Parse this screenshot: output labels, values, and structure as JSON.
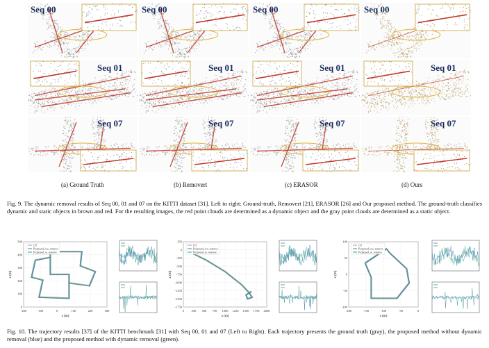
{
  "figure9": {
    "rows": [
      {
        "label": "Seq 00"
      },
      {
        "label": "Seq 01"
      },
      {
        "label": "Seq 07"
      }
    ],
    "columns": [
      {
        "label": "(a) Ground Truth",
        "dynamic": "#c0392b",
        "static": "#9a9a9a"
      },
      {
        "label": "(b) Removert",
        "dynamic": "#c0392b",
        "static": "#9a9a9a"
      },
      {
        "label": "(c) ERASOR",
        "dynamic": "#c0392b",
        "static": "#9a9a9a"
      },
      {
        "label": "(d) Ours",
        "dynamic": "#c0392b",
        "static": "#b7a06a"
      }
    ],
    "caption": "Fig. 9.   The dynamic removal results of Seq 00, 01 and 07 on the KITTI dataset [31]. Left to right: Ground-truth, Removert [21], ERASOR [26] and Our proposed method. The ground-truth classifies dynamic and static objects in brown and red. For the resulting images, the red point clouds are determined as a dynamic object and the gray point clouds are determined as a static object."
  },
  "figure10": {
    "legend": [
      "GT",
      "Proposed_wo_remove",
      "Proposed_w_remove"
    ],
    "colors": {
      "gt": "#9e9e9e",
      "wo": "#4a7fb5",
      "w": "#3aa08a"
    },
    "plots": [
      {
        "xlabel": "x (m)",
        "ylabel": "z (m)",
        "xticks": [
          "-200",
          "-100",
          "0",
          "100",
          "200",
          "300"
        ],
        "yticks": [
          "500",
          "400",
          "300",
          "200",
          "100",
          "0"
        ]
      },
      {
        "xlabel": "x (m)",
        "ylabel": "z (m)",
        "xticks": [
          "0",
          "250",
          "500",
          "750",
          "1000",
          "1250",
          "1500",
          "1750",
          "2000"
        ],
        "yticks": [
          "250",
          "0",
          "-250",
          "-500",
          "-750",
          "-1000",
          "-1250",
          "-1500",
          "-1750"
        ]
      },
      {
        "xlabel": "x (m)",
        "ylabel": "z (m)",
        "xticks": [
          "-200",
          "-150",
          "-100",
          "-50",
          "0"
        ],
        "yticks": [
          "100",
          "50",
          "0",
          "-50",
          "-100"
        ]
      }
    ],
    "caption": "Fig. 10.  The trajectory results [37] of the KITTI benchmark [31] with Seq 00, 01 and 07 (Left to Right). Each trajectory presents the ground truth (gray), the proposed method without dynamic removal (blue) and the proposed method with dynamic removal (green)."
  }
}
